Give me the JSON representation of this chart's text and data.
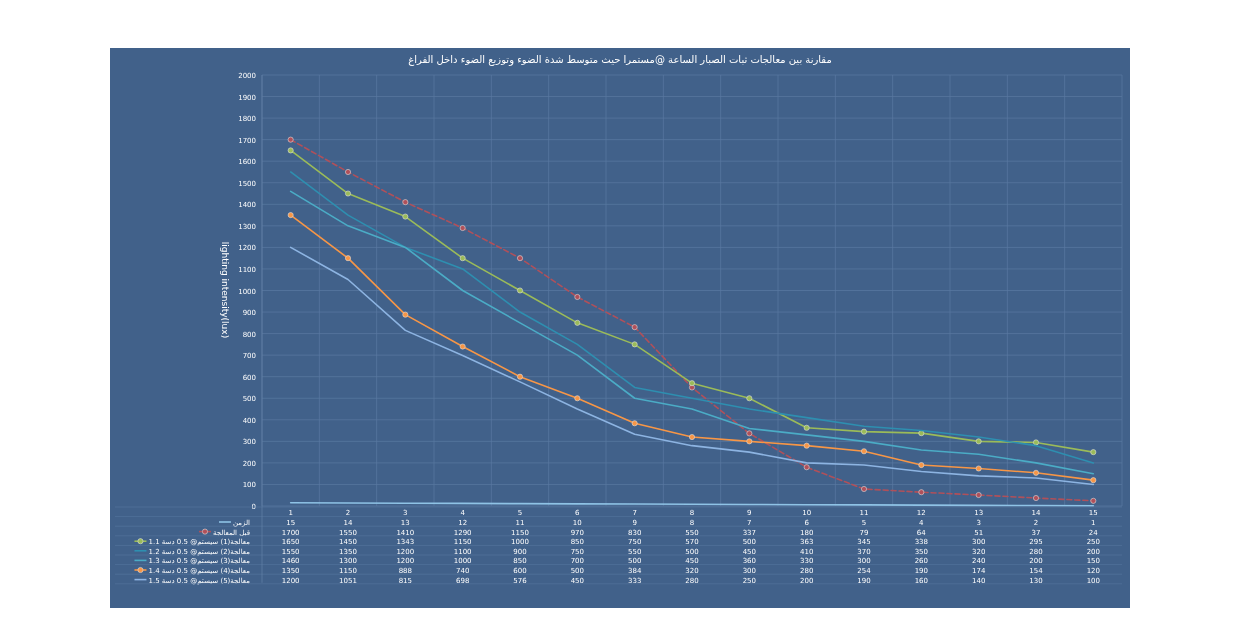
{
  "chart_data": {
    "type": "line",
    "title": "مقارنة بين معالجات ثبات الصبار الساعة @مستمرا حيث متوسط شدة الضوء وتوزيع الضوء داخل الفراغ",
    "ylabel": "lighting intensity(lux)",
    "categories": [
      "1",
      "2",
      "3",
      "4",
      "5",
      "6",
      "7",
      "8",
      "9",
      "10",
      "11",
      "12",
      "13",
      "14",
      "15"
    ],
    "ylim": [
      0,
      2000
    ],
    "yticks": [
      0,
      100,
      200,
      300,
      400,
      500,
      600,
      700,
      800,
      900,
      1000,
      1100,
      1200,
      1300,
      1400,
      1500,
      1600,
      1700,
      1800,
      1900,
      2000
    ],
    "grid": true,
    "data_labels": true,
    "legend": "bottom left",
    "series": [
      {
        "name": "الزمن",
        "color": "#8fc3e6",
        "marker": "none",
        "values": [
          15,
          14,
          13,
          12,
          11,
          10,
          9,
          8,
          7,
          6,
          5,
          4,
          3,
          2,
          1
        ]
      },
      {
        "name": "قبل المعالجة",
        "color": "#b0505a",
        "marker": "circle",
        "line_style": "dashed",
        "values": [
          1700,
          1550,
          1410,
          1290,
          1150,
          970,
          830,
          550,
          337,
          180,
          79,
          64,
          51,
          37,
          24
        ]
      },
      {
        "name": "معالجة(1) سيستم@ 0.5 دسة 1.1",
        "color": "#9bbb59",
        "marker": "circle",
        "values": [
          1650,
          1450,
          1343,
          1150,
          1000,
          850,
          750,
          570,
          500,
          363,
          345,
          338,
          300,
          295,
          250
        ]
      },
      {
        "name": "معالجة(2) سيستم@ 0.5 دسة 1.2",
        "color": "#2e8fb0",
        "marker": "none",
        "values": [
          1550,
          1350,
          1200,
          1100,
          900,
          750,
          550,
          500,
          450,
          410,
          370,
          350,
          320,
          280,
          200
        ]
      },
      {
        "name": "معالجة(3) سيستم@ 0.5 دسة 1.3",
        "color": "#4bacc6",
        "marker": "none",
        "values": [
          1460,
          1300,
          1200,
          1000,
          850,
          700,
          500,
          450,
          360,
          330,
          300,
          260,
          240,
          200,
          150
        ]
      },
      {
        "name": "معالجة(4) سيستم@ 0.5 دسة 1.4",
        "color": "#f79646",
        "marker": "circle",
        "values": [
          1350,
          1150,
          888,
          740,
          600,
          500,
          384,
          320,
          300,
          280,
          254,
          190,
          174,
          154,
          120
        ]
      },
      {
        "name": "معالجة(5) سيستم@ 0.5 دسة 1.5",
        "color": "#8db4e2",
        "marker": "none",
        "values": [
          1200,
          1051,
          815,
          698,
          576,
          450,
          333,
          280,
          250,
          200,
          190,
          160,
          140,
          130,
          100
        ]
      }
    ]
  }
}
